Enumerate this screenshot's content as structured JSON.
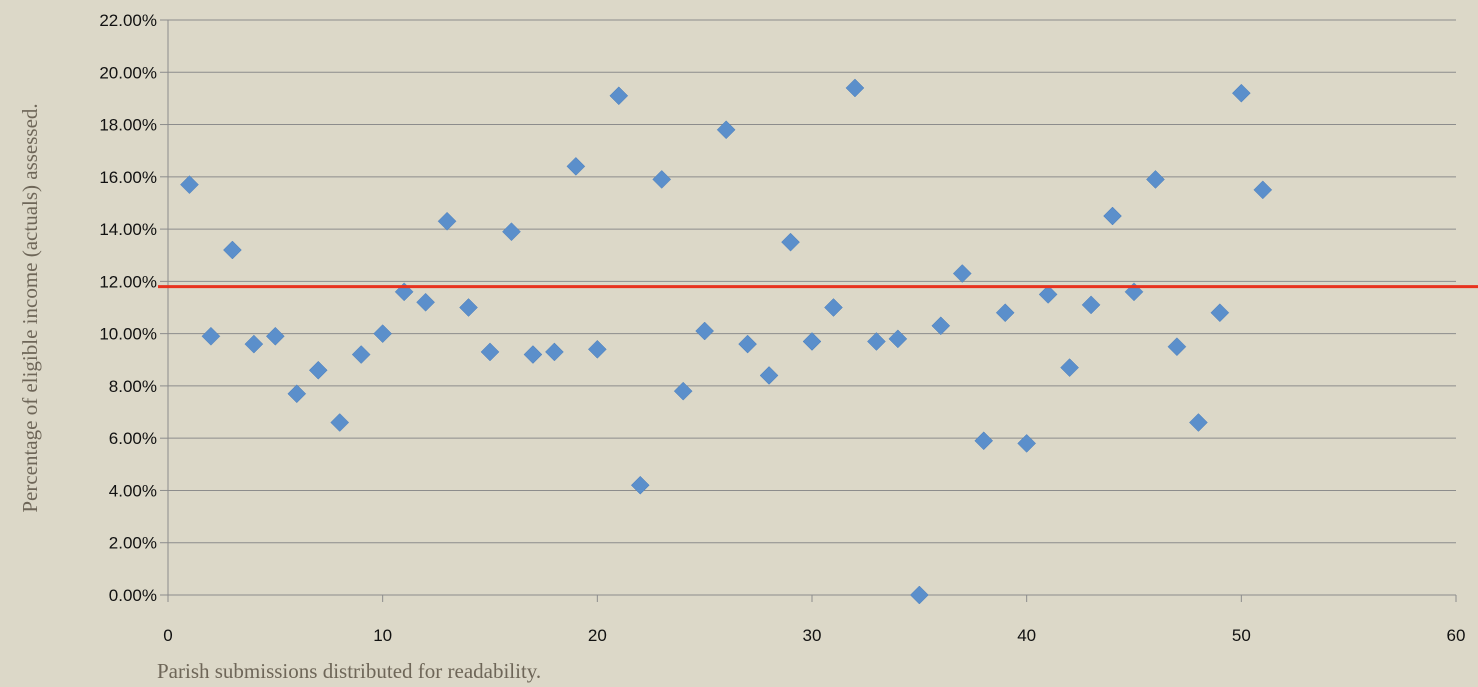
{
  "chart_data": {
    "type": "scatter",
    "title": "",
    "xlabel": "Parish submissions distributed for readability.",
    "ylabel": "Percentage of  eligible income (actuals) assessed.",
    "xlim": [
      0,
      60
    ],
    "ylim": [
      0,
      0.22
    ],
    "x_ticks": [
      0,
      10,
      20,
      30,
      40,
      50,
      60
    ],
    "y_ticks": [
      0,
      0.02,
      0.04,
      0.06,
      0.08,
      0.1,
      0.12,
      0.14,
      0.16,
      0.18,
      0.2,
      0.22
    ],
    "x_tick_labels": [
      "0",
      "10",
      "20",
      "30",
      "40",
      "50",
      "60"
    ],
    "y_tick_labels": [
      "0.00%",
      "2.00%",
      "4.00%",
      "6.00%",
      "8.00%",
      "10.00%",
      "12.00%",
      "14.00%",
      "16.00%",
      "18.00%",
      "20.00%",
      "22.00%"
    ],
    "grid": true,
    "series": [
      {
        "marker": "diamond",
        "color": "#5b8fcb",
        "x": [
          1,
          2,
          3,
          4,
          5,
          6,
          7,
          8,
          9,
          10,
          11,
          12,
          13,
          14,
          15,
          16,
          17,
          18,
          19,
          20,
          21,
          22,
          23,
          24,
          25,
          26,
          27,
          28,
          29,
          30,
          31,
          32,
          33,
          34,
          35,
          36,
          37,
          38,
          39,
          40,
          41,
          42,
          43,
          44,
          45,
          46,
          47,
          48,
          49,
          50,
          51
        ],
        "y": [
          0.157,
          0.099,
          0.132,
          0.096,
          0.099,
          0.077,
          0.086,
          0.066,
          0.092,
          0.1,
          0.116,
          0.112,
          0.143,
          0.11,
          0.093,
          0.139,
          0.092,
          0.093,
          0.164,
          0.094,
          0.191,
          0.042,
          0.159,
          0.078,
          0.101,
          0.178,
          0.096,
          0.084,
          0.135,
          0.097,
          0.11,
          0.194,
          0.097,
          0.098,
          0.0,
          0.103,
          0.123,
          0.059,
          0.108,
          0.058,
          0.115,
          0.087,
          0.111,
          0.145,
          0.116,
          0.159,
          0.095,
          0.066,
          0.108,
          0.192,
          0.155
        ]
      }
    ],
    "reference_line": {
      "y": 0.118,
      "color": "#e8321e"
    }
  }
}
